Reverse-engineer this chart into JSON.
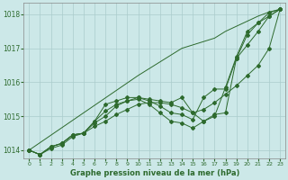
{
  "background_color": "#cce8e8",
  "grid_color": "#aacccc",
  "line_color": "#2d6a2d",
  "title": "Graphe pression niveau de la mer (hPa)",
  "xlim": [
    -0.5,
    23.5
  ],
  "ylim": [
    1013.75,
    1018.35
  ],
  "xticks": [
    0,
    1,
    2,
    3,
    4,
    5,
    6,
    7,
    8,
    9,
    10,
    11,
    12,
    13,
    14,
    15,
    16,
    17,
    18,
    19,
    20,
    21,
    22,
    23
  ],
  "yticks": [
    1014,
    1015,
    1016,
    1017,
    1018
  ],
  "series": [
    [
      1014.0,
      1013.87,
      1014.1,
      1014.2,
      1014.45,
      1014.5,
      1014.85,
      1015.15,
      1015.35,
      1015.45,
      1015.55,
      1015.5,
      1015.45,
      1015.4,
      1015.55,
      1015.1,
      1014.85,
      1015.0,
      1015.85,
      1016.75,
      1017.5,
      1017.75,
      1018.05,
      1018.15
    ],
    [
      1014.0,
      1013.87,
      1014.1,
      1014.2,
      1014.45,
      1014.5,
      1014.85,
      1015.35,
      1015.45,
      1015.55,
      1015.55,
      1015.45,
      1015.3,
      1015.1,
      1015.05,
      1014.9,
      1015.55,
      1015.8,
      1015.8,
      1016.7,
      1017.4,
      1017.75,
      1017.95,
      1018.15
    ],
    [
      1014.0,
      1013.87,
      1014.1,
      1014.2,
      1014.45,
      1014.5,
      1014.8,
      1015.0,
      1015.3,
      1015.45,
      1015.5,
      1015.35,
      1015.1,
      1014.85,
      1014.8,
      1014.65,
      1014.85,
      1015.05,
      1015.1,
      1016.7,
      1017.1,
      1017.5,
      1017.95,
      1018.15
    ],
    [
      1014.0,
      1013.87,
      1014.05,
      1014.15,
      1014.4,
      1014.5,
      1014.7,
      1014.85,
      1015.05,
      1015.2,
      1015.35,
      1015.4,
      1015.4,
      1015.35,
      1015.25,
      1015.1,
      1015.2,
      1015.4,
      1015.65,
      1015.9,
      1016.2,
      1016.5,
      1017.0,
      1018.15
    ]
  ],
  "series_no_markers": [
    [
      1014.0,
      1014.22,
      1014.44,
      1014.66,
      1014.88,
      1015.1,
      1015.32,
      1015.54,
      1015.76,
      1015.98,
      1016.2,
      1016.4,
      1016.6,
      1016.8,
      1017.0,
      1017.1,
      1017.2,
      1017.3,
      1017.5,
      1017.65,
      1017.8,
      1017.95,
      1018.07,
      1018.15
    ]
  ]
}
